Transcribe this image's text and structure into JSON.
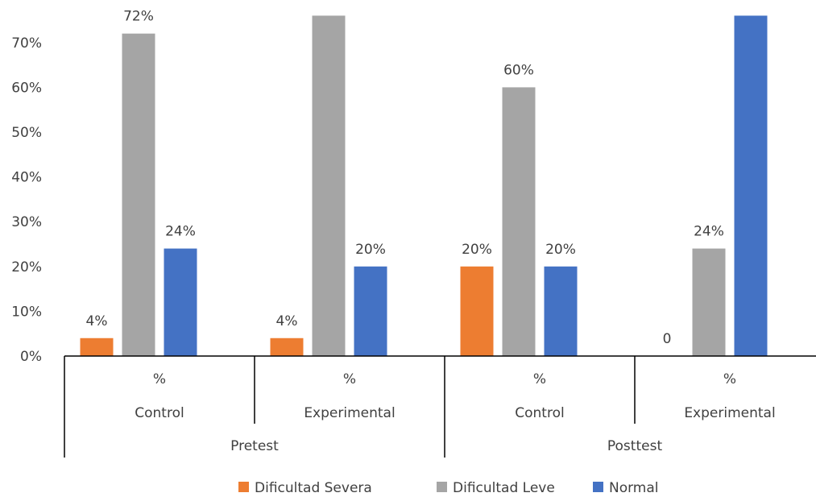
{
  "chart_data": {
    "type": "bar",
    "title": "",
    "xlabel": "",
    "ylabel": "",
    "ylim": [
      0,
      0.76
    ],
    "yticks": [
      "0%",
      "10%",
      "20%",
      "30%",
      "40%",
      "50%",
      "60%",
      "70%"
    ],
    "ytick_values": [
      0,
      0.1,
      0.2,
      0.3,
      0.4,
      0.5,
      0.6,
      0.7
    ],
    "groups": [
      {
        "label": "Pretest",
        "subgroups": [
          {
            "label": "Control",
            "unit": "%"
          },
          {
            "label": "Experimental",
            "unit": "%"
          }
        ]
      },
      {
        "label": "Posttest",
        "subgroups": [
          {
            "label": "Control",
            "unit": "%"
          },
          {
            "label": "Experimental",
            "unit": "%"
          }
        ]
      }
    ],
    "series": [
      {
        "name": "Dificultad Severa",
        "color": "#ED7D31",
        "values": [
          0.04,
          0.04,
          0.2,
          0
        ],
        "labels": [
          "4%",
          "4%",
          "20%",
          "0"
        ]
      },
      {
        "name": "Dificultad Leve",
        "color": "#A5A5A5",
        "values": [
          0.72,
          0.76,
          0.6,
          0.24
        ],
        "labels": [
          "72%",
          "",
          "60%",
          "24%"
        ]
      },
      {
        "name": "Normal",
        "color": "#4472C4",
        "values": [
          0.24,
          0.2,
          0.2,
          0.76
        ],
        "labels": [
          "24%",
          "20%",
          "20%",
          ""
        ]
      }
    ],
    "legend_position": "bottom",
    "grid": false
  }
}
